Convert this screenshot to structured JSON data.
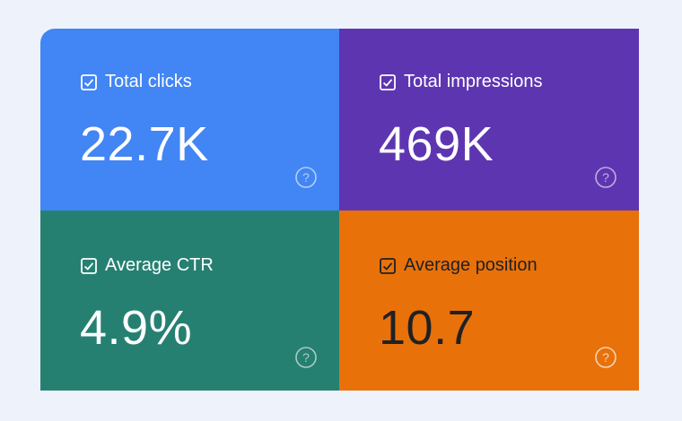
{
  "cards": [
    {
      "label": "Total clicks",
      "value": "22.7K"
    },
    {
      "label": "Total impressions",
      "value": "469K"
    },
    {
      "label": "Average CTR",
      "value": "4.9%"
    },
    {
      "label": "Average position",
      "value": "10.7"
    }
  ]
}
